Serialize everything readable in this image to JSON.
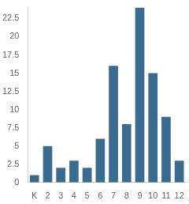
{
  "chart_data": {
    "type": "bar",
    "categories": [
      "K",
      "2",
      "3",
      "4",
      "5",
      "6",
      "7",
      "8",
      "9",
      "10",
      "11",
      "12"
    ],
    "values": [
      1,
      5,
      2,
      3,
      2,
      6,
      16,
      8,
      24,
      15,
      9,
      3
    ],
    "color": "#3b6b8f",
    "ylim": [
      0,
      24
    ],
    "yticks": [
      0,
      2.5,
      5,
      7.5,
      10,
      12.5,
      15,
      17.5,
      20,
      22.5
    ],
    "grid": false
  }
}
